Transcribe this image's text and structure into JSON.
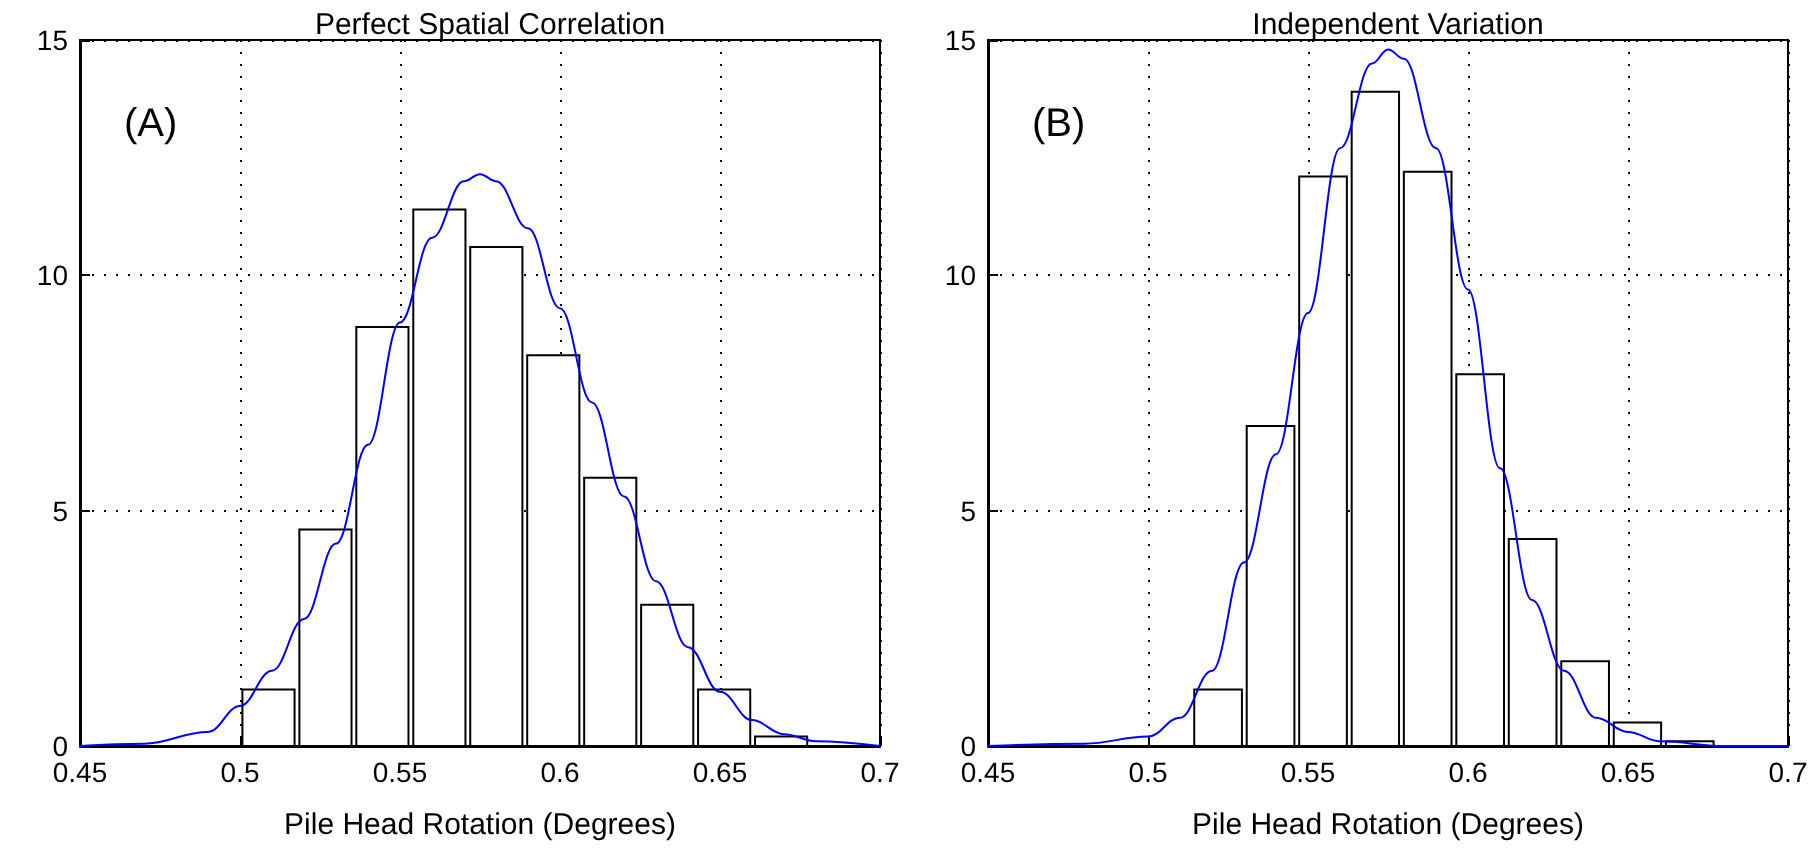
{
  "chart_data": [
    {
      "type": "histogram",
      "title": "Perfect Spatial Correlation",
      "xlabel": "Pile Head Rotation (Degrees)",
      "annotations": [
        "(A)"
      ],
      "series": [
        {
          "color": "#ffffff",
          "bins": [
            0.5,
            0.5178,
            0.5356,
            0.5534,
            0.5712,
            0.589,
            0.6068,
            0.6246,
            0.6424,
            0.6602,
            0.678
          ],
          "values": [
            1.2,
            4.6,
            8.9,
            11.4,
            10.6,
            8.3,
            5.7,
            3.0,
            1.2,
            0.2
          ]
        },
        {
          "type": "line",
          "color": "#0000ff",
          "x": [
            0.45,
            0.47,
            0.49,
            0.5,
            0.51,
            0.52,
            0.53,
            0.54,
            0.55,
            0.56,
            0.57,
            0.575,
            0.58,
            0.59,
            0.6,
            0.61,
            0.62,
            0.63,
            0.64,
            0.65,
            0.66,
            0.67,
            0.68,
            0.7
          ],
          "values": [
            0,
            0.05,
            0.3,
            0.85,
            1.6,
            2.7,
            4.3,
            6.4,
            9.0,
            10.8,
            12.0,
            12.15,
            12.0,
            11.0,
            9.3,
            7.3,
            5.3,
            3.5,
            2.1,
            1.15,
            0.55,
            0.25,
            0.1,
            0
          ]
        }
      ],
      "xlim": [
        0.45,
        0.7
      ],
      "xticks": [
        0.45,
        0.5,
        0.55,
        0.6,
        0.65,
        0.7
      ],
      "ylim": [
        0,
        15
      ],
      "yticks": [
        0,
        5,
        10,
        15
      ],
      "grid": true,
      "line_style": "solid",
      "marker": "none"
    },
    {
      "type": "histogram",
      "title": "Independent Variation",
      "xlabel": "Pile Head Rotation (Degrees)",
      "annotations": [
        "(B)"
      ],
      "series": [
        {
          "color": "#ffffff",
          "bins": [
            0.5137,
            0.5301,
            0.5465,
            0.5629,
            0.5792,
            0.5956,
            0.612,
            0.6284,
            0.6448,
            0.6611,
            0.6775
          ],
          "values": [
            1.2,
            6.8,
            12.1,
            13.9,
            12.2,
            7.9,
            4.4,
            1.8,
            0.5,
            0.1
          ]
        },
        {
          "type": "line",
          "color": "#0000ff",
          "x": [
            0.45,
            0.48,
            0.5,
            0.51,
            0.52,
            0.53,
            0.54,
            0.55,
            0.56,
            0.57,
            0.575,
            0.58,
            0.59,
            0.6,
            0.61,
            0.62,
            0.63,
            0.64,
            0.65,
            0.66,
            0.68,
            0.7
          ],
          "values": [
            0,
            0.05,
            0.2,
            0.6,
            1.6,
            3.9,
            6.2,
            9.2,
            12.7,
            14.5,
            14.8,
            14.6,
            12.7,
            9.7,
            5.9,
            3.1,
            1.6,
            0.6,
            0.3,
            0.1,
            0,
            0
          ]
        }
      ],
      "xlim": [
        0.45,
        0.7
      ],
      "xticks": [
        0.45,
        0.5,
        0.55,
        0.6,
        0.65,
        0.7
      ],
      "ylim": [
        0,
        15
      ],
      "yticks": [
        0,
        5,
        10,
        15
      ],
      "grid": true,
      "line_style": "solid",
      "marker": "none"
    }
  ]
}
